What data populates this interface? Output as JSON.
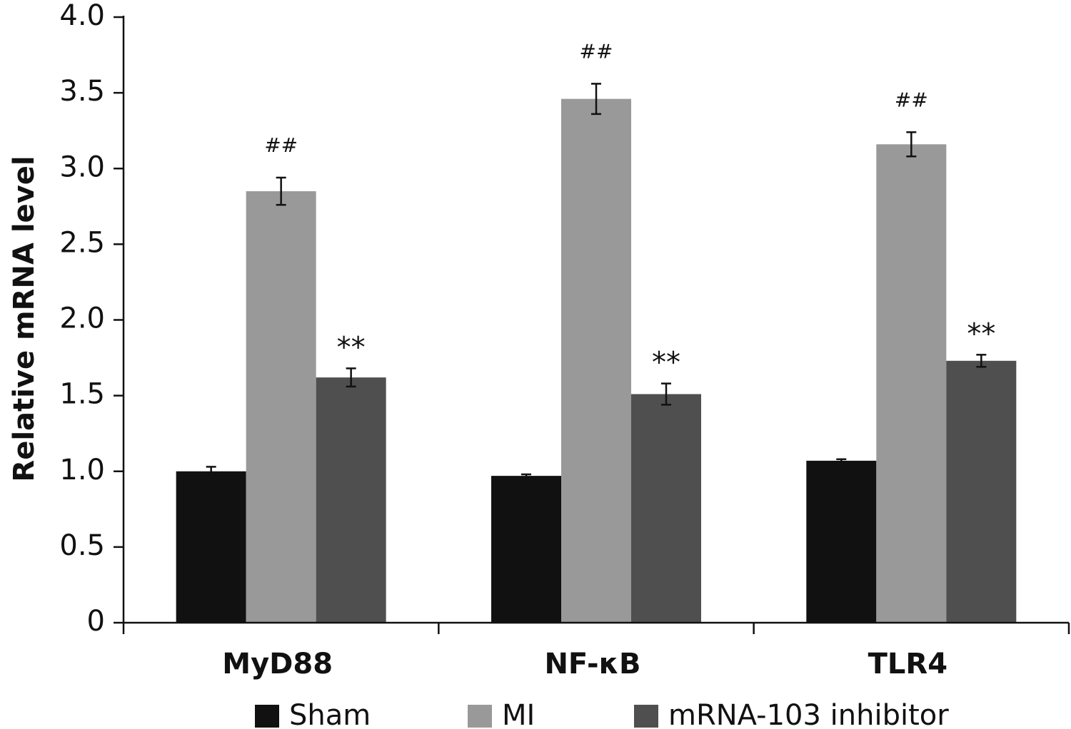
{
  "chart_data": {
    "type": "bar",
    "ylabel": "Relative mRNA level",
    "ylim": [
      0,
      4.0
    ],
    "yticks": [
      0,
      0.5,
      1.0,
      1.5,
      2.0,
      2.5,
      3.0,
      3.5,
      4.0
    ],
    "ytick_labels": [
      "0",
      "0.5",
      "1.0",
      "1.5",
      "2.0",
      "2.5",
      "3.0",
      "3.5",
      "4.0"
    ],
    "categories": [
      "MyD88",
      "NF-κB",
      "TLR4"
    ],
    "legend_position": "bottom",
    "grid": false,
    "series": [
      {
        "name": "Sham",
        "color": "#111111",
        "values": [
          1.0,
          0.97,
          1.07
        ],
        "errors": [
          0.03,
          0.01,
          0.01
        ],
        "annotations": [
          "",
          "",
          ""
        ]
      },
      {
        "name": "MI",
        "color": "#999999",
        "values": [
          2.85,
          3.46,
          3.16
        ],
        "errors": [
          0.09,
          0.1,
          0.08
        ],
        "annotations": [
          "##",
          "##",
          "##"
        ]
      },
      {
        "name": "mRNA-103 inhibitor",
        "color": "#4f4f4f",
        "values": [
          1.62,
          1.51,
          1.73
        ],
        "errors": [
          0.06,
          0.07,
          0.04
        ],
        "annotations": [
          "**",
          "**",
          "**"
        ]
      }
    ]
  }
}
